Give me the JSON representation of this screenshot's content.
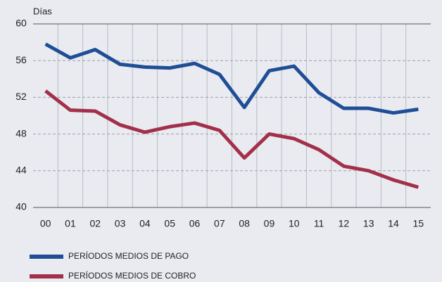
{
  "chart_data": {
    "type": "line",
    "y_axis_label": "Días",
    "categories": [
      "00",
      "01",
      "02",
      "03",
      "04",
      "05",
      "06",
      "07",
      "08",
      "09",
      "10",
      "11",
      "12",
      "13",
      "14",
      "15"
    ],
    "series": [
      {
        "name": "PERÍODOS MEDIOS DE PAGO",
        "color": "#1f4e96",
        "values": [
          57.8,
          56.3,
          57.2,
          55.6,
          55.3,
          55.2,
          55.7,
          54.5,
          50.9,
          54.9,
          55.4,
          52.5,
          50.8,
          50.8,
          50.3,
          50.7
        ]
      },
      {
        "name": "PERÍODOS MEDIOS DE COBRO",
        "color": "#a3304a",
        "values": [
          52.7,
          50.6,
          50.5,
          49.0,
          48.2,
          48.8,
          49.2,
          48.4,
          45.4,
          48.0,
          47.5,
          46.3,
          44.5,
          44.0,
          43.0,
          42.2
        ]
      }
    ],
    "ylim": [
      40,
      60
    ],
    "yticks": [
      40,
      44,
      48,
      52,
      56,
      60
    ],
    "grid": true,
    "legend": "bottom"
  }
}
